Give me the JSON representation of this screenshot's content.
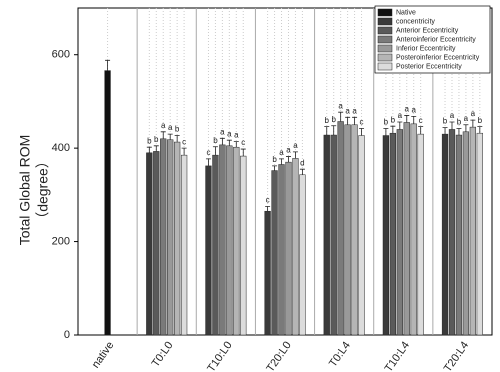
{
  "chart_data": {
    "type": "bar",
    "y_label": [
      "Total Global ROM",
      "（degree）"
    ],
    "categories": [
      "native",
      "T0:L0",
      "T10:L0",
      "T20:L0",
      "T0:L4",
      "T10:L4",
      "T20:L4"
    ],
    "ylim": [
      0,
      700
    ],
    "yticks": [
      0,
      200,
      400,
      600
    ],
    "legend": "top-right",
    "series": [
      {
        "name": "Native",
        "color": "#111111",
        "values": [
          566,
          null,
          null,
          null,
          null,
          null,
          null
        ],
        "errors": [
          22,
          null,
          null,
          null,
          null,
          null,
          null
        ],
        "letters": [
          null,
          null,
          null,
          null,
          null,
          null,
          null
        ]
      },
      {
        "name": "concentricity",
        "color": "#3a3a3a",
        "values": [
          null,
          390,
          362,
          265,
          428,
          427,
          430
        ],
        "errors": [
          null,
          12,
          15,
          10,
          18,
          15,
          14
        ],
        "letters": [
          null,
          "b",
          "c",
          "c",
          "b",
          "b",
          "b"
        ]
      },
      {
        "name": "Anterior Eccentricity",
        "color": "#5a5a5a",
        "values": [
          null,
          393,
          385,
          352,
          428,
          432,
          440
        ],
        "errors": [
          null,
          12,
          18,
          10,
          20,
          15,
          16
        ],
        "letters": [
          null,
          "b",
          "b",
          "b",
          "b",
          "b",
          "a"
        ]
      },
      {
        "name": "Anteroinferior Eccentricity",
        "color": "#7a7a7a",
        "values": [
          null,
          420,
          407,
          365,
          457,
          440,
          428
        ],
        "errors": [
          null,
          15,
          14,
          12,
          20,
          16,
          14
        ],
        "letters": [
          null,
          "a",
          "a",
          "a",
          "a",
          "a",
          "b"
        ]
      },
      {
        "name": "Inferior Eccentricity",
        "color": "#999999",
        "values": [
          null,
          418,
          405,
          370,
          450,
          455,
          435
        ],
        "errors": [
          null,
          12,
          12,
          12,
          16,
          15,
          15
        ],
        "letters": [
          null,
          "a",
          "a",
          "a",
          "a",
          "a",
          "a"
        ]
      },
      {
        "name": "Posteroinferior Eccentricity",
        "color": "#b5b5b5",
        "values": [
          null,
          413,
          402,
          378,
          450,
          452,
          445
        ],
        "errors": [
          null,
          14,
          12,
          14,
          16,
          16,
          15
        ],
        "letters": [
          null,
          "b",
          "a",
          "a",
          "a",
          "a",
          "a"
        ]
      },
      {
        "name": "Posterior Eccentricity",
        "color": "#dcdcdc",
        "values": [
          null,
          385,
          383,
          343,
          427,
          430,
          432
        ],
        "errors": [
          null,
          15,
          15,
          12,
          15,
          16,
          14
        ],
        "letters": [
          null,
          "c",
          "c",
          "d",
          "c",
          "c",
          "b"
        ]
      }
    ]
  }
}
